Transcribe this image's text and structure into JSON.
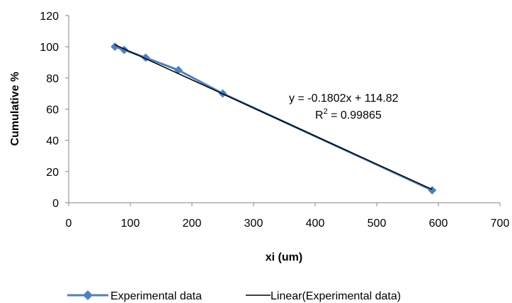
{
  "chart_data": {
    "type": "scatter",
    "title": "",
    "xlabel": "xi (um)",
    "ylabel": "Cumulative %",
    "xlim": [
      0,
      700
    ],
    "ylim": [
      0,
      120
    ],
    "x_ticks": [
      0,
      100,
      200,
      300,
      400,
      500,
      600,
      700
    ],
    "y_ticks": [
      0,
      20,
      40,
      60,
      80,
      100,
      120
    ],
    "grid": false,
    "legend_position": "bottom",
    "series": [
      {
        "name": "Experimental data",
        "color": "#4f81bd",
        "marker": "diamond",
        "points": [
          {
            "x": 75,
            "y": 100
          },
          {
            "x": 90,
            "y": 98
          },
          {
            "x": 125,
            "y": 93
          },
          {
            "x": 178,
            "y": 85
          },
          {
            "x": 250,
            "y": 70
          },
          {
            "x": 590,
            "y": 8
          }
        ]
      }
    ],
    "trendline": {
      "name": "Linear(Experimental data)",
      "color": "#000000",
      "slope": -0.1802,
      "intercept": 114.82,
      "x_range": [
        75,
        590
      ]
    },
    "annotations": {
      "equation": "y = -0.1802x + 114.82",
      "r2_prefix": "R",
      "r2_superscript": "2",
      "r2_suffix": " = 0.99865"
    }
  }
}
